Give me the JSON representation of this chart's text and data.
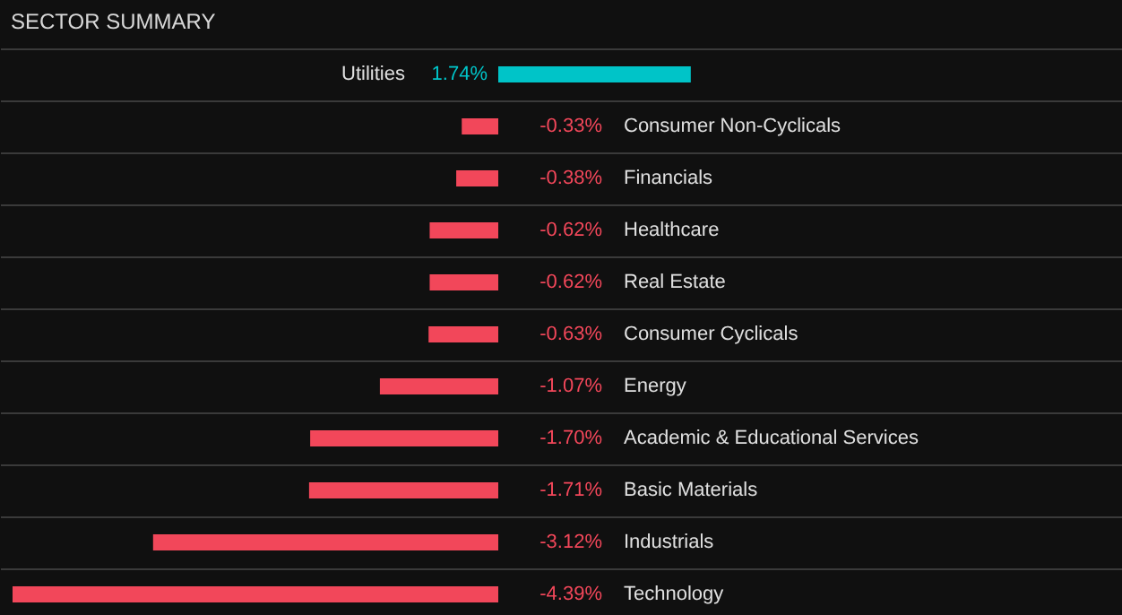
{
  "chart_data": {
    "type": "bar",
    "orientation": "horizontal",
    "title": "SECTOR SUMMARY",
    "categories": [
      "Utilities",
      "Consumer Non-Cyclicals",
      "Financials",
      "Healthcare",
      "Real Estate",
      "Consumer Cyclicals",
      "Energy",
      "Academic & Educational Services",
      "Basic Materials",
      "Industrials",
      "Technology"
    ],
    "values": [
      1.74,
      -0.33,
      -0.38,
      -0.62,
      -0.62,
      -0.63,
      -1.07,
      -1.7,
      -1.71,
      -3.12,
      -4.39
    ],
    "value_labels": [
      "1.74%",
      "-0.33%",
      "-0.38%",
      "-0.62%",
      "-0.62%",
      "-0.63%",
      "-1.07%",
      "-1.70%",
      "-1.71%",
      "-3.12%",
      "-4.39%"
    ],
    "colors": [
      "#00c4c8",
      "#f2475a",
      "#f2475a",
      "#f2475a",
      "#f2475a",
      "#f2475a",
      "#f2475a",
      "#f2475a",
      "#f2475a",
      "#f2475a",
      "#f2475a"
    ],
    "grid": "y"
  }
}
